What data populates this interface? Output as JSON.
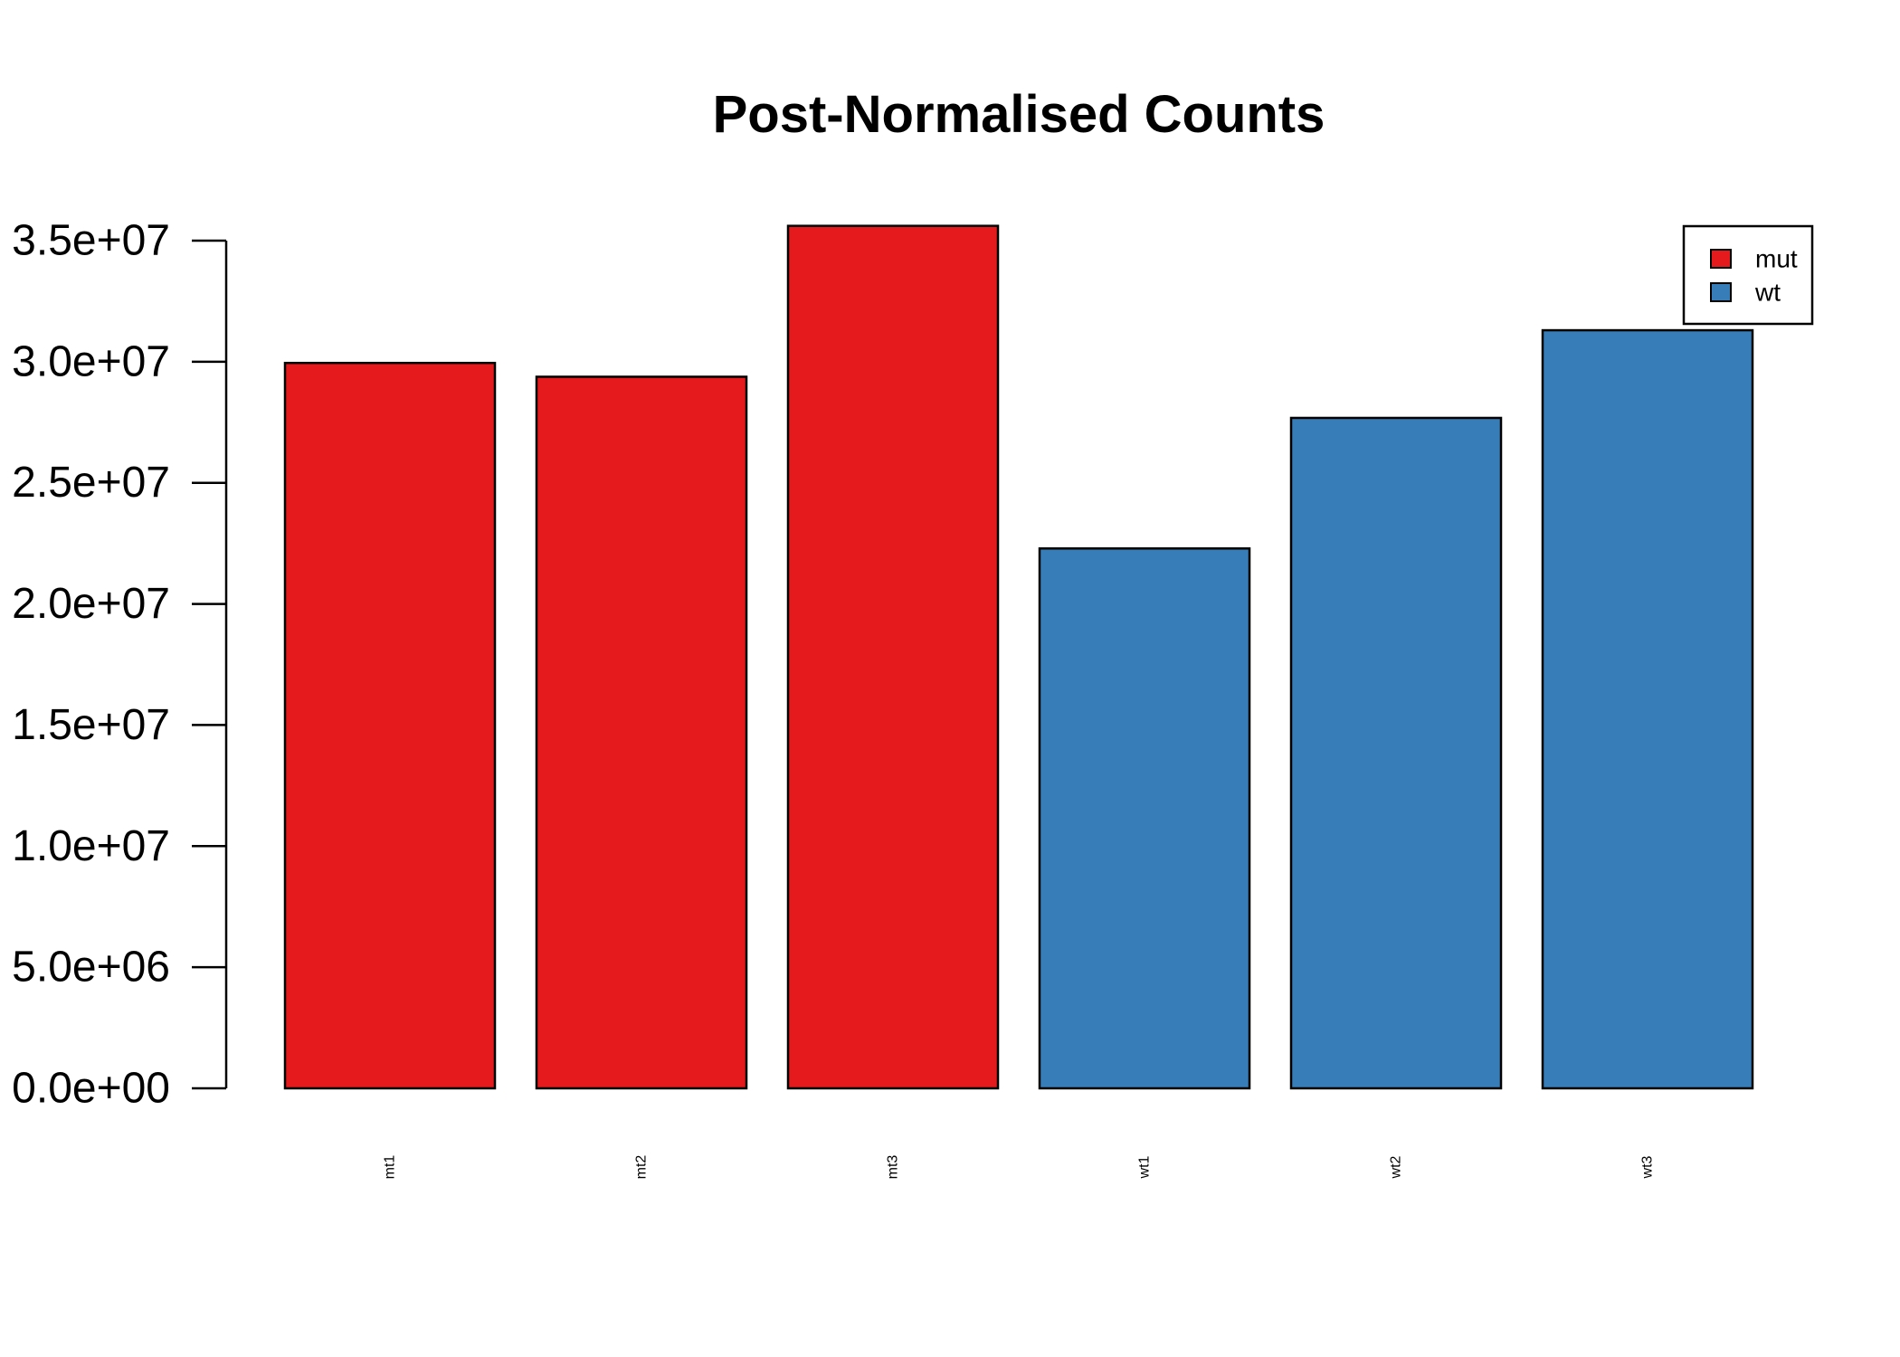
{
  "chart_data": {
    "type": "bar",
    "title": "Post-Normalised Counts",
    "xlabel": "",
    "ylabel": "",
    "categories": [
      "mt1",
      "mt2",
      "mt3",
      "wt1",
      "wt2",
      "wt3"
    ],
    "values": [
      29950000,
      29380000,
      35610000,
      22290000,
      27680000,
      31300000
    ],
    "groups": [
      "mut",
      "mut",
      "mut",
      "wt",
      "wt",
      "wt"
    ],
    "ylim": [
      0,
      35000000
    ],
    "yticks": [
      0,
      5000000,
      10000000,
      15000000,
      20000000,
      25000000,
      30000000,
      35000000
    ],
    "ytick_labels": [
      "0.0e+00",
      "5.0e+06",
      "1.0e+07",
      "1.5e+07",
      "2.0e+07",
      "2.5e+07",
      "3.0e+07",
      "3.5e+07"
    ],
    "grid": false,
    "legend": {
      "placement": "top-right",
      "entries": [
        {
          "label": "mut",
          "color": "#E41A1C"
        },
        {
          "label": "wt",
          "color": "#377EB8"
        }
      ]
    },
    "colors": {
      "mut": "#E41A1C",
      "wt": "#377EB8"
    }
  }
}
